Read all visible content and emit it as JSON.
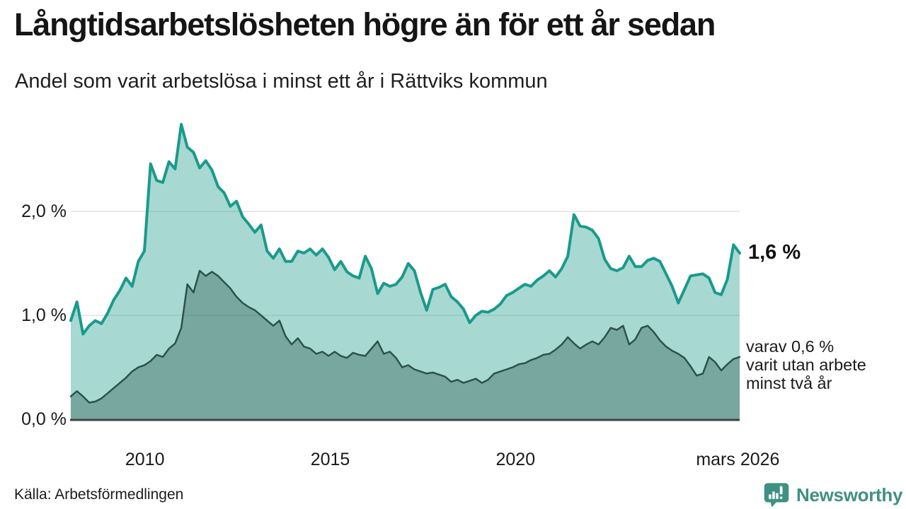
{
  "header": {
    "title": "Långtidsarbetslösheten högre än för ett år sedan",
    "subtitle": "Andel som varit arbetslösa i minst ett år i Rättviks kommun"
  },
  "chart_data": {
    "type": "area",
    "title": "Långtidsarbetslösheten högre än för ett år sedan",
    "subtitle": "Andel som varit arbetslösa i minst ett år i Rättviks kommun",
    "unit": "%",
    "x_domain": [
      2008.0,
      2026.05
    ],
    "x_frequency": "ca varannan månad (utjämnad månadsserie)",
    "ylim": [
      0,
      2.88
    ],
    "grid": "horizontal",
    "legend": "none",
    "grid_color": "#e2e2e2",
    "axis_color": "#424242",
    "y_ticks": [
      {
        "value": 0,
        "label": "0,0 %"
      },
      {
        "value": 1,
        "label": "1,0 %"
      },
      {
        "value": 2,
        "label": "2,0 %"
      }
    ],
    "x_ticks": [
      {
        "year": 2010,
        "label": "2010"
      },
      {
        "year": 2015,
        "label": "2015"
      },
      {
        "year": 2020,
        "label": "2020"
      },
      {
        "year": 2026,
        "label": "mars 2026"
      }
    ],
    "annotations": {
      "end_value": "1,6 %",
      "secondary": [
        "varav 0,6 %",
        "varit utan arbete",
        "minst två år"
      ]
    },
    "series": [
      {
        "name": "Andel som varit arbetslösa i minst ett år",
        "end_value_pct": 1.6,
        "color": "#1a9a8c",
        "fill": "rgba(24,154,138,0.38)",
        "values": [
          0.95,
          1.13,
          0.82,
          0.9,
          0.95,
          0.92,
          1.02,
          1.15,
          1.24,
          1.36,
          1.28,
          1.52,
          1.62,
          2.46,
          2.3,
          2.28,
          2.48,
          2.41,
          2.84,
          2.62,
          2.57,
          2.42,
          2.49,
          2.4,
          2.24,
          2.18,
          2.05,
          2.1,
          1.95,
          1.88,
          1.8,
          1.87,
          1.62,
          1.55,
          1.64,
          1.52,
          1.52,
          1.62,
          1.6,
          1.64,
          1.58,
          1.64,
          1.56,
          1.44,
          1.52,
          1.42,
          1.38,
          1.36,
          1.57,
          1.45,
          1.21,
          1.31,
          1.28,
          1.3,
          1.37,
          1.5,
          1.43,
          1.22,
          1.05,
          1.25,
          1.27,
          1.3,
          1.18,
          1.13,
          1.06,
          0.93,
          1.0,
          1.04,
          1.03,
          1.06,
          1.11,
          1.19,
          1.22,
          1.26,
          1.3,
          1.28,
          1.34,
          1.38,
          1.43,
          1.37,
          1.45,
          1.57,
          1.97,
          1.86,
          1.85,
          1.82,
          1.74,
          1.54,
          1.45,
          1.43,
          1.46,
          1.57,
          1.47,
          1.47,
          1.53,
          1.55,
          1.52,
          1.4,
          1.28,
          1.12,
          1.25,
          1.38,
          1.39,
          1.4,
          1.36,
          1.22,
          1.2,
          1.35,
          1.68,
          1.6
        ]
      },
      {
        "name": "varav utan arbete minst två år",
        "end_value_pct": 0.6,
        "color": "#2c524b",
        "fill": "rgba(38,77,70,0.36)",
        "values": [
          0.22,
          0.27,
          0.22,
          0.16,
          0.17,
          0.2,
          0.25,
          0.3,
          0.35,
          0.4,
          0.46,
          0.5,
          0.52,
          0.56,
          0.62,
          0.6,
          0.68,
          0.73,
          0.88,
          1.3,
          1.22,
          1.43,
          1.38,
          1.42,
          1.38,
          1.32,
          1.26,
          1.18,
          1.12,
          1.08,
          1.05,
          1.0,
          0.95,
          0.9,
          0.95,
          0.8,
          0.72,
          0.78,
          0.7,
          0.68,
          0.63,
          0.65,
          0.61,
          0.65,
          0.61,
          0.59,
          0.64,
          0.62,
          0.61,
          0.68,
          0.75,
          0.63,
          0.65,
          0.59,
          0.5,
          0.52,
          0.48,
          0.46,
          0.44,
          0.45,
          0.43,
          0.41,
          0.36,
          0.38,
          0.35,
          0.37,
          0.39,
          0.35,
          0.38,
          0.44,
          0.46,
          0.48,
          0.5,
          0.53,
          0.54,
          0.57,
          0.59,
          0.62,
          0.63,
          0.67,
          0.72,
          0.79,
          0.73,
          0.68,
          0.72,
          0.75,
          0.72,
          0.79,
          0.88,
          0.86,
          0.9,
          0.72,
          0.77,
          0.88,
          0.9,
          0.84,
          0.76,
          0.7,
          0.66,
          0.63,
          0.59,
          0.51,
          0.42,
          0.44,
          0.6,
          0.55,
          0.47,
          0.53,
          0.58,
          0.6
        ]
      }
    ]
  },
  "footer": {
    "source_label": "Källa: Arbetsförmedlingen",
    "brand_name": "Newsworthy",
    "brand_color": "#3f9183",
    "brand_icon": "bar-chart-speech-bubble-icon"
  }
}
